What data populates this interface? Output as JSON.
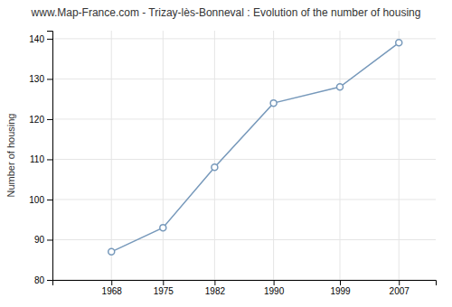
{
  "chart_data": {
    "type": "line",
    "title": "www.Map-France.com - Trizay-lès-Bonneval : Evolution of the number of housing",
    "ylabel": "Number of housing",
    "x": [
      1968,
      1975,
      1982,
      1990,
      1999,
      2007
    ],
    "values": [
      87,
      93,
      108,
      124,
      128,
      139
    ],
    "color": "#7799bb",
    "marker": "circle",
    "xlim": [
      1960,
      2012
    ],
    "xticks": [
      1968,
      1975,
      1982,
      1990,
      1999,
      2007
    ],
    "ylim": [
      80,
      142
    ],
    "yticks": [
      80,
      90,
      100,
      110,
      120,
      130,
      140
    ],
    "grid": true
  }
}
